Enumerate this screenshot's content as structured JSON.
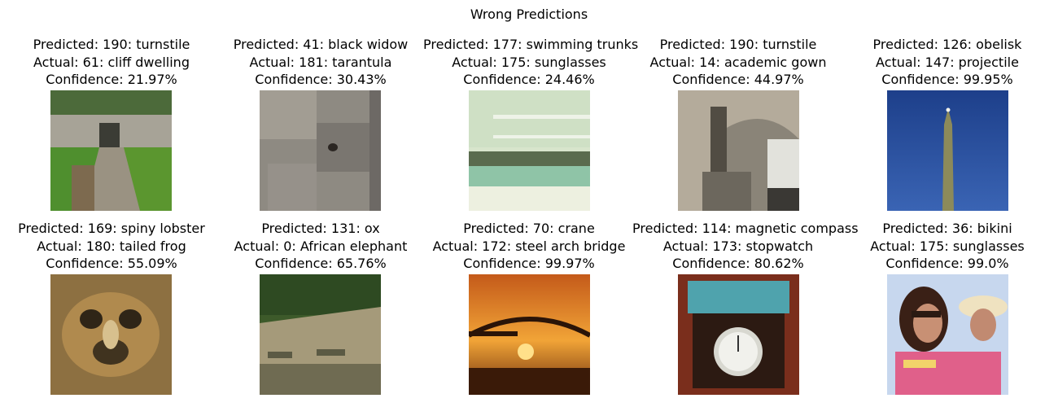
{
  "figure": {
    "title": "Wrong Predictions"
  },
  "panels": [
    {
      "predicted": "Predicted: 190: turnstile",
      "actual": "Actual: 61: cliff dwelling",
      "confidence": "Confidence: 21.97%"
    },
    {
      "predicted": "Predicted: 41: black widow",
      "actual": "Actual: 181: tarantula",
      "confidence": "Confidence: 30.43%"
    },
    {
      "predicted": "Predicted: 177: swimming trunks",
      "actual": "Actual: 175: sunglasses",
      "confidence": "Confidence: 24.46%"
    },
    {
      "predicted": "Predicted: 190: turnstile",
      "actual": "Actual: 14: academic gown",
      "confidence": "Confidence: 44.97%"
    },
    {
      "predicted": "Predicted: 126: obelisk",
      "actual": "Actual: 147: projectile",
      "confidence": "Confidence: 99.95%"
    },
    {
      "predicted": "Predicted: 169: spiny lobster",
      "actual": "Actual: 180: tailed frog",
      "confidence": "Confidence: 55.09%"
    },
    {
      "predicted": "Predicted: 131: ox",
      "actual": "Actual: 0: African elephant",
      "confidence": "Confidence: 65.76%"
    },
    {
      "predicted": "Predicted: 70: crane",
      "actual": "Actual: 172: steel arch bridge",
      "confidence": "Confidence: 99.97%"
    },
    {
      "predicted": "Predicted: 114: magnetic compass",
      "actual": "Actual: 173: stopwatch",
      "confidence": "Confidence: 80.62%"
    },
    {
      "predicted": "Predicted: 36: bikini",
      "actual": "Actual: 175: sunglasses",
      "confidence": "Confidence: 99.0%"
    }
  ]
}
